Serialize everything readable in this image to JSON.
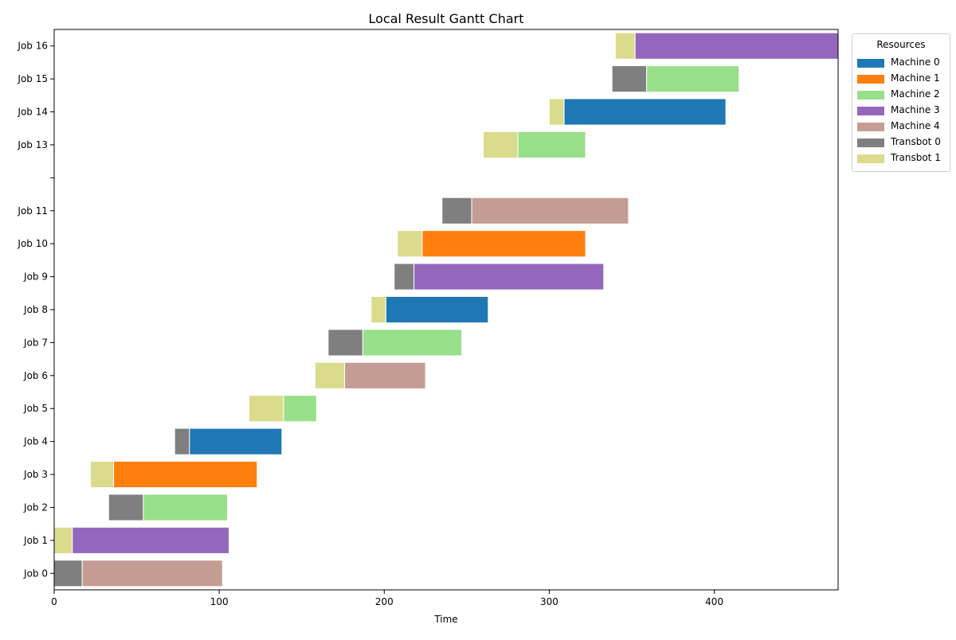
{
  "chart_data": {
    "type": "gantt",
    "title": "Local Result Gantt Chart",
    "xlabel": "Time",
    "ylabel": "",
    "xlim": [
      0,
      475
    ],
    "x_ticks": [
      0,
      100,
      200,
      300,
      400
    ],
    "y_categories": [
      "Job 0",
      "Job 1",
      "Job 2",
      "Job 3",
      "Job 4",
      "Job 5",
      "Job 6",
      "Job 7",
      "Job 8",
      "Job 9",
      "Job 10",
      "Job 11",
      "",
      "Job 13",
      "Job 14",
      "Job 15",
      "Job 16"
    ],
    "grid": false,
    "legend": {
      "title": "Resources",
      "placement": "upper right, outside plot"
    },
    "resources": [
      {
        "name": "Machine 0",
        "color": "#1f77b4"
      },
      {
        "name": "Machine 1",
        "color": "#ff7f0e"
      },
      {
        "name": "Machine 2",
        "color": "#98df8a"
      },
      {
        "name": "Machine 3",
        "color": "#9467bd"
      },
      {
        "name": "Machine 4",
        "color": "#c49c94"
      },
      {
        "name": "Transbot 0",
        "color": "#7f7f7f"
      },
      {
        "name": "Transbot 1",
        "color": "#dbdb8d"
      }
    ],
    "tasks": [
      {
        "job": "Job 0",
        "resource": "Transbot 0",
        "start": 0,
        "end": 17
      },
      {
        "job": "Job 0",
        "resource": "Machine 4",
        "start": 17,
        "end": 102
      },
      {
        "job": "Job 1",
        "resource": "Transbot 1",
        "start": 0,
        "end": 11
      },
      {
        "job": "Job 1",
        "resource": "Machine 3",
        "start": 11,
        "end": 106
      },
      {
        "job": "Job 2",
        "resource": "Transbot 0",
        "start": 33,
        "end": 54
      },
      {
        "job": "Job 2",
        "resource": "Machine 2",
        "start": 54,
        "end": 105
      },
      {
        "job": "Job 3",
        "resource": "Transbot 1",
        "start": 22,
        "end": 36
      },
      {
        "job": "Job 3",
        "resource": "Machine 1",
        "start": 36,
        "end": 123
      },
      {
        "job": "Job 4",
        "resource": "Transbot 0",
        "start": 73,
        "end": 82
      },
      {
        "job": "Job 4",
        "resource": "Machine 0",
        "start": 82,
        "end": 138
      },
      {
        "job": "Job 5",
        "resource": "Transbot 1",
        "start": 118,
        "end": 139
      },
      {
        "job": "Job 5",
        "resource": "Machine 2",
        "start": 139,
        "end": 159
      },
      {
        "job": "Job 6",
        "resource": "Transbot 1",
        "start": 158,
        "end": 176
      },
      {
        "job": "Job 6",
        "resource": "Machine 4",
        "start": 176,
        "end": 225
      },
      {
        "job": "Job 7",
        "resource": "Transbot 0",
        "start": 166,
        "end": 187
      },
      {
        "job": "Job 7",
        "resource": "Machine 2",
        "start": 187,
        "end": 247
      },
      {
        "job": "Job 8",
        "resource": "Transbot 1",
        "start": 192,
        "end": 201
      },
      {
        "job": "Job 8",
        "resource": "Machine 0",
        "start": 201,
        "end": 263
      },
      {
        "job": "Job 9",
        "resource": "Transbot 0",
        "start": 206,
        "end": 218
      },
      {
        "job": "Job 9",
        "resource": "Machine 3",
        "start": 218,
        "end": 333
      },
      {
        "job": "Job 10",
        "resource": "Transbot 1",
        "start": 208,
        "end": 223
      },
      {
        "job": "Job 10",
        "resource": "Machine 1",
        "start": 223,
        "end": 322
      },
      {
        "job": "Job 11",
        "resource": "Transbot 0",
        "start": 235,
        "end": 253
      },
      {
        "job": "Job 11",
        "resource": "Machine 4",
        "start": 253,
        "end": 348
      },
      {
        "job": "Job 13",
        "resource": "Transbot 1",
        "start": 260,
        "end": 281
      },
      {
        "job": "Job 13",
        "resource": "Machine 2",
        "start": 281,
        "end": 322
      },
      {
        "job": "Job 14",
        "resource": "Transbot 1",
        "start": 300,
        "end": 309
      },
      {
        "job": "Job 14",
        "resource": "Machine 0",
        "start": 309,
        "end": 407
      },
      {
        "job": "Job 15",
        "resource": "Transbot 0",
        "start": 338,
        "end": 359
      },
      {
        "job": "Job 15",
        "resource": "Machine 2",
        "start": 359,
        "end": 415
      },
      {
        "job": "Job 16",
        "resource": "Transbot 1",
        "start": 340,
        "end": 352
      },
      {
        "job": "Job 16",
        "resource": "Machine 3",
        "start": 352,
        "end": 475
      }
    ]
  }
}
